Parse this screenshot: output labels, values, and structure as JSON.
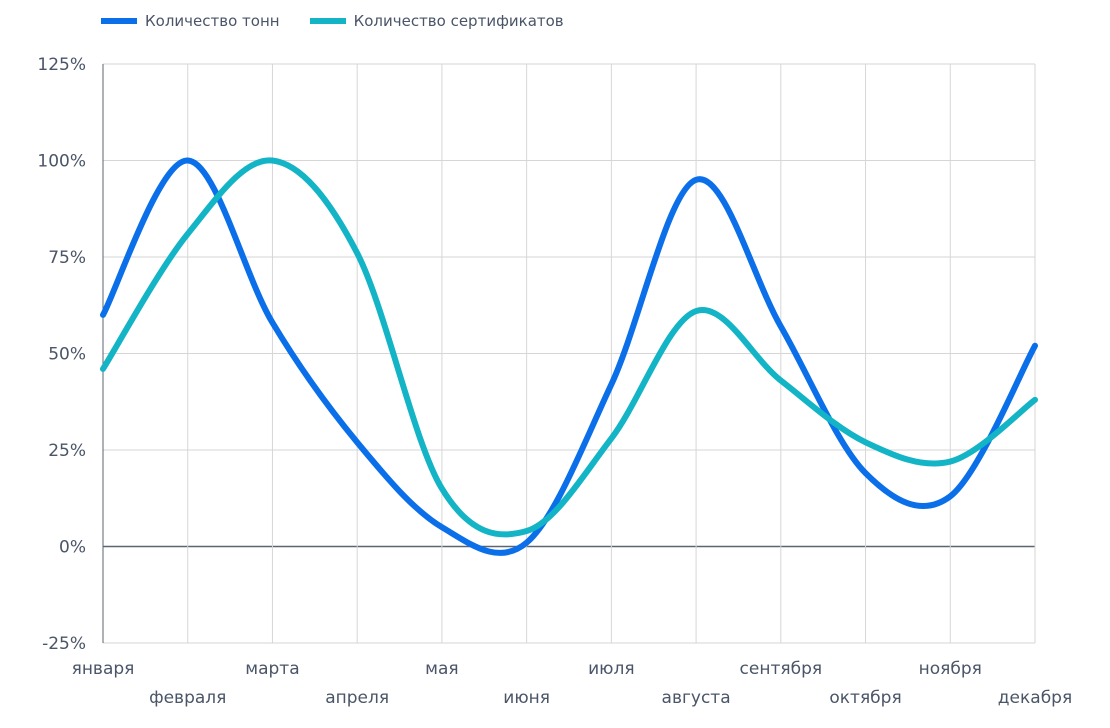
{
  "chart_data": {
    "type": "line",
    "title": "",
    "xlabel": "",
    "ylabel": "",
    "categories": [
      "января",
      "февраля",
      "марта",
      "апреля",
      "мая",
      "июня",
      "июля",
      "августа",
      "сентября",
      "октября",
      "ноября",
      "декабря"
    ],
    "yticks": [
      -25,
      0,
      25,
      50,
      75,
      100,
      125
    ],
    "ytick_labels": [
      "-25%",
      "0%",
      "25%",
      "50%",
      "75%",
      "100%",
      "125%"
    ],
    "ylim": [
      -25,
      125
    ],
    "grid": true,
    "legend_position": "top-left",
    "series": [
      {
        "name": "Количество тонн",
        "color": "#0a6fe8",
        "values": [
          60,
          100,
          58,
          27,
          5,
          1,
          42,
          95,
          57,
          19,
          13,
          52
        ]
      },
      {
        "name": "Количество сертификатов",
        "color": "#12b4c6",
        "values": [
          46,
          81,
          100,
          76,
          15,
          4,
          28,
          61,
          43,
          27,
          22,
          38
        ]
      }
    ]
  }
}
